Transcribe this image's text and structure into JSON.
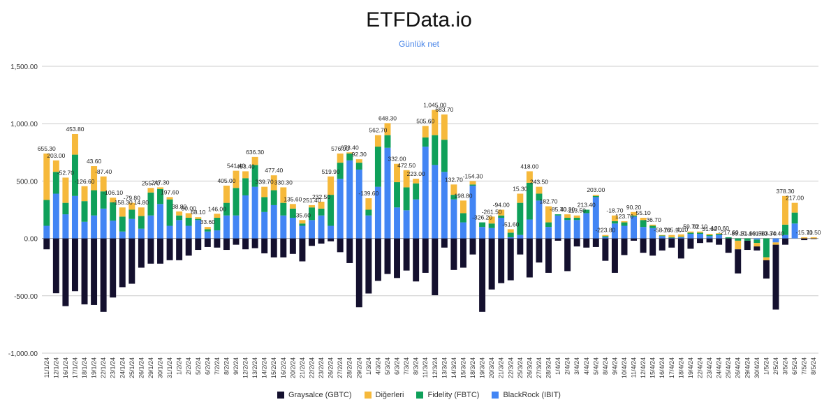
{
  "chart_data": {
    "type": "bar",
    "stacked": true,
    "title": "ETFData.io",
    "subtitle": "Günlük net",
    "ylim": [
      -1000,
      1500
    ],
    "yticks": [
      "1,500.00",
      "1,000.00",
      "500.00",
      "0.00",
      "-500.00",
      "-1,000.00"
    ],
    "ytick_values": [
      1500,
      1000,
      500,
      0,
      -500,
      -1000
    ],
    "grid": true,
    "legend": "bottom",
    "categories": [
      "11/1/24",
      "12/1/24",
      "16/1/24",
      "17/1/24",
      "18/1/24",
      "19/1/24",
      "22/1/24",
      "23/1/24",
      "24/1/24",
      "25/1/24",
      "26/1/24",
      "29/1/24",
      "30/1/24",
      "31/1/24",
      "1/2/24",
      "2/2/24",
      "5/2/24",
      "6/2/24",
      "7/2/24",
      "8/2/24",
      "9/2/24",
      "12/2/24",
      "13/2/24",
      "14/2/24",
      "15/2/24",
      "16/2/24",
      "20/2/24",
      "21/2/24",
      "22/2/24",
      "23/2/24",
      "26/2/24",
      "27/2/24",
      "28/2/24",
      "29/2/24",
      "1/3/24",
      "4/3/24",
      "5/3/24",
      "6/3/24",
      "7/3/24",
      "8/3/24",
      "11/3/24",
      "12/3/24",
      "13/3/24",
      "14/3/24",
      "15/3/24",
      "18/3/24",
      "19/3/24",
      "20/3/24",
      "21/3/24",
      "22/3/24",
      "25/3/24",
      "26/3/24",
      "27/3/24",
      "28/3/24",
      "1/4/24",
      "2/4/24",
      "3/4/24",
      "4/4/24",
      "5/4/24",
      "8/4/24",
      "9/4/24",
      "10/4/24",
      "11/4/24",
      "12/4/24",
      "15/4/24",
      "16/4/24",
      "17/4/24",
      "18/4/24",
      "19/4/24",
      "22/4/24",
      "23/4/24",
      "24/4/24",
      "25/4/24",
      "26/4/24",
      "29/4/24",
      "30/4/24",
      "1/5/24",
      "2/5/24",
      "3/5/24",
      "6/5/24",
      "7/5/24",
      "8/5/24"
    ],
    "series": [
      {
        "name": "Graysalce (GBTC)",
        "color": "#14102e",
        "values": [
          -95,
          -478,
          -590,
          -460,
          -575,
          -580,
          -640,
          -515,
          -425,
          -395,
          -255,
          -220,
          -220,
          -190,
          -190,
          -150,
          -100,
          -75,
          -80,
          -100,
          -55,
          -95,
          -85,
          -130,
          -165,
          -165,
          -135,
          -200,
          -65,
          -45,
          -25,
          -120,
          -215,
          -600,
          -480,
          -370,
          -310,
          -345,
          -280,
          -375,
          -300,
          -495,
          -80,
          -275,
          -255,
          -140,
          -640,
          -445,
          -390,
          -365,
          -140,
          -340,
          -210,
          -300,
          -20,
          -285,
          -70,
          -80,
          -75,
          -195,
          -300,
          -145,
          -20,
          -125,
          -150,
          -105,
          -80,
          -175,
          -90,
          -40,
          -35,
          -55,
          -125,
          -210,
          -80,
          -35,
          -160,
          -565,
          -55,
          0,
          -15,
          -5
        ]
      },
      {
        "name": "Diğerleri",
        "color": "#f6b93b",
        "values": [
          405,
          100,
          220,
          180,
          130,
          210,
          130,
          40,
          80,
          60,
          75,
          40,
          15,
          20,
          35,
          40,
          15,
          20,
          35,
          150,
          150,
          60,
          70,
          90,
          130,
          135,
          40,
          30,
          20,
          60,
          160,
          80,
          10,
          30,
          100,
          100,
          105,
          160,
          150,
          40,
          100,
          220,
          220,
          90,
          110,
          30,
          0,
          60,
          50,
          30,
          80,
          100,
          60,
          140,
          0,
          30,
          20,
          0,
          10,
          10,
          50,
          10,
          30,
          20,
          10,
          5,
          20,
          20,
          10,
          10,
          10,
          5,
          0,
          -75,
          0,
          -30,
          -25,
          -20,
          250,
          85,
          10,
          10
        ]
      },
      {
        "name": "Fidelity (FBTC)",
        "color": "#0fa05a",
        "values": [
          225,
          190,
          100,
          360,
          180,
          220,
          150,
          160,
          130,
          80,
          110,
          200,
          130,
          230,
          40,
          70,
          10,
          20,
          110,
          110,
          240,
          150,
          190,
          130,
          130,
          110,
          80,
          20,
          110,
          60,
          270,
          140,
          60,
          60,
          50,
          350,
          110,
          220,
          200,
          140,
          80,
          260,
          280,
          40,
          80,
          10,
          40,
          40,
          20,
          40,
          280,
          320,
          60,
          40,
          10,
          20,
          20,
          30,
          10,
          10,
          20,
          30,
          10,
          60,
          20,
          5,
          5,
          5,
          10,
          10,
          10,
          10,
          10,
          -20,
          -20,
          -30,
          -165,
          0,
          90,
          95,
          0,
          0
        ]
      },
      {
        "name": "BlackRock (IBIT)",
        "color": "#4285f4",
        "values": [
          110,
          390,
          210,
          370,
          145,
          200,
          260,
          155,
          60,
          170,
          85,
          200,
          300,
          110,
          160,
          110,
          160,
          60,
          70,
          200,
          200,
          375,
          450,
          230,
          290,
          200,
          180,
          110,
          160,
          200,
          110,
          520,
          680,
          600,
          200,
          450,
          790,
          270,
          245,
          340,
          800,
          640,
          580,
          340,
          140,
          460,
          100,
          90,
          180,
          10,
          30,
          165,
          330,
          100,
          200,
          160,
          160,
          220,
          360,
          10,
          130,
          110,
          190,
          100,
          90,
          20,
          5,
          10,
          40,
          40,
          20,
          30,
          0,
          0,
          0,
          -10,
          0,
          -35,
          30,
          130,
          0,
          0
        ]
      }
    ],
    "data_labels": [
      {
        "i": 0,
        "text": "655.30"
      },
      {
        "i": 1,
        "text": "203.00"
      },
      {
        "i": 2,
        "text": "-52.70"
      },
      {
        "i": 3,
        "text": "453.80"
      },
      {
        "i": 4,
        "text": "-126.60"
      },
      {
        "i": 5,
        "text": "43.60"
      },
      {
        "i": 6,
        "text": "-87.40"
      },
      {
        "i": 7,
        "text": "-106.10"
      },
      {
        "i": 8,
        "text": "-158.30"
      },
      {
        "i": 9,
        "text": "-79.80"
      },
      {
        "i": 10,
        "text": "14.80"
      },
      {
        "i": 11,
        "text": "255.70"
      },
      {
        "i": 12,
        "text": "247.30"
      },
      {
        "i": 13,
        "text": "197.60"
      },
      {
        "i": 14,
        "text": "38.80"
      },
      {
        "i": 15,
        "text": "80.00"
      },
      {
        "i": 16,
        "text": "68.10"
      },
      {
        "i": 17,
        "text": "33.60"
      },
      {
        "i": 18,
        "text": "146.00"
      },
      {
        "i": 19,
        "text": "405.00"
      },
      {
        "i": 20,
        "text": "541.40"
      },
      {
        "i": 21,
        "text": "493.40"
      },
      {
        "i": 22,
        "text": "636.30"
      },
      {
        "i": 23,
        "text": "339.70"
      },
      {
        "i": 24,
        "text": "477.40"
      },
      {
        "i": 25,
        "text": "330.30"
      },
      {
        "i": 26,
        "text": "135.60"
      },
      {
        "i": 27,
        "text": "-35.60"
      },
      {
        "i": 28,
        "text": "251.40"
      },
      {
        "i": 29,
        "text": "232.50"
      },
      {
        "i": 30,
        "text": "519.90"
      },
      {
        "i": 31,
        "text": "576.90"
      },
      {
        "i": 32,
        "text": "673.40"
      },
      {
        "i": 33,
        "text": "92.30"
      },
      {
        "i": 34,
        "text": "-139.60"
      },
      {
        "i": 35,
        "text": "562.70"
      },
      {
        "i": 36,
        "text": "648.30"
      },
      {
        "i": 37,
        "text": "332.00"
      },
      {
        "i": 38,
        "text": "472.50"
      },
      {
        "i": 39,
        "text": "223.00"
      },
      {
        "i": 40,
        "text": "505.60"
      },
      {
        "i": 41,
        "text": "1,045.00"
      },
      {
        "i": 42,
        "text": "683.70"
      },
      {
        "i": 43,
        "text": "132.70"
      },
      {
        "i": 44,
        "text": "198.80"
      },
      {
        "i": 45,
        "text": "-154.30"
      },
      {
        "i": 46,
        "text": "-326.20"
      },
      {
        "i": 47,
        "text": "-261.50"
      },
      {
        "i": 48,
        "text": "-94.00"
      },
      {
        "i": 49,
        "text": "-51.60"
      },
      {
        "i": 50,
        "text": "15.30"
      },
      {
        "i": 51,
        "text": "418.00"
      },
      {
        "i": 52,
        "text": "243.50"
      },
      {
        "i": 53,
        "text": "182.70"
      },
      {
        "i": 54,
        "text": "-85.70"
      },
      {
        "i": 55,
        "text": "40.30"
      },
      {
        "i": 56,
        "text": "113.50"
      },
      {
        "i": 57,
        "text": "213.40"
      },
      {
        "i": 58,
        "text": "203.00"
      },
      {
        "i": 59,
        "text": "-223.80"
      },
      {
        "i": 60,
        "text": "-18.70"
      },
      {
        "i": 61,
        "text": "123.70"
      },
      {
        "i": 62,
        "text": "90.20"
      },
      {
        "i": 63,
        "text": "55.10"
      },
      {
        "i": 64,
        "text": "-36.70"
      },
      {
        "i": 65,
        "text": "-58.70"
      },
      {
        "i": 66,
        "text": "-165.10"
      },
      {
        "i": 67,
        "text": "-4.10"
      },
      {
        "i": 68,
        "text": "59.70"
      },
      {
        "i": 69,
        "text": "62.10"
      },
      {
        "i": 70,
        "text": "31.60"
      },
      {
        "i": 71,
        "text": "-120.60"
      },
      {
        "i": 72,
        "text": "-217.60"
      },
      {
        "i": 73,
        "text": "-83.10"
      },
      {
        "i": 74,
        "text": "-51.60"
      },
      {
        "i": 75,
        "text": "-161.60"
      },
      {
        "i": 76,
        "text": "-563.70"
      },
      {
        "i": 77,
        "text": "-34.40"
      },
      {
        "i": 78,
        "text": "378.30"
      },
      {
        "i": 79,
        "text": "217.00"
      },
      {
        "i": 80,
        "text": "-15.70"
      },
      {
        "i": 81,
        "text": "11.50"
      }
    ]
  },
  "legend_items": [
    "Graysalce (GBTC)",
    "Diğerleri",
    "Fidelity (FBTC)",
    "BlackRock (IBIT)"
  ]
}
